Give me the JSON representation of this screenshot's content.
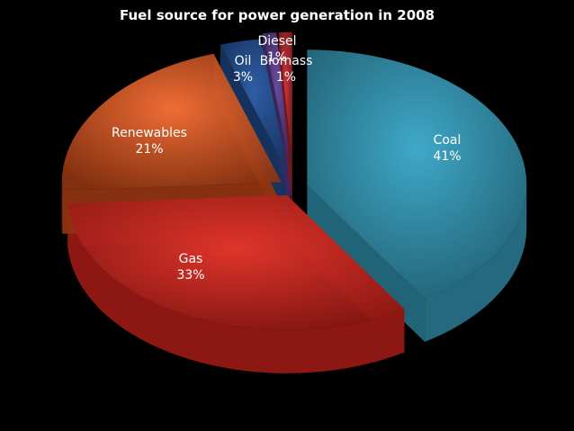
{
  "chart_data": {
    "type": "pie",
    "title": "Fuel source for power generation in 2008",
    "slices": [
      {
        "name": "Coal",
        "value": 41,
        "label": "41%",
        "color": "#3fa9c9",
        "color_dark": "#24697d"
      },
      {
        "name": "Gas",
        "value": 33,
        "label": "33%",
        "color": "#e0352b",
        "color_dark": "#8d1712"
      },
      {
        "name": "Renewables",
        "value": 21,
        "label": "21%",
        "color": "#ef6d35",
        "color_dark": "#8e3411"
      },
      {
        "name": "Oil",
        "value": 3,
        "label": "3%",
        "color": "#2f5ea6",
        "color_dark": "#163463"
      },
      {
        "name": "Diesel",
        "value": 1,
        "label": "1%",
        "color": "#6a4a9c",
        "color_dark": "#3b2860"
      },
      {
        "name": "Biomass",
        "value": 1,
        "label": "1%",
        "color": "#c8343a",
        "color_dark": "#74191c"
      }
    ],
    "label_color": "#ffffff",
    "legend": "none",
    "style": "3d-exploded"
  }
}
